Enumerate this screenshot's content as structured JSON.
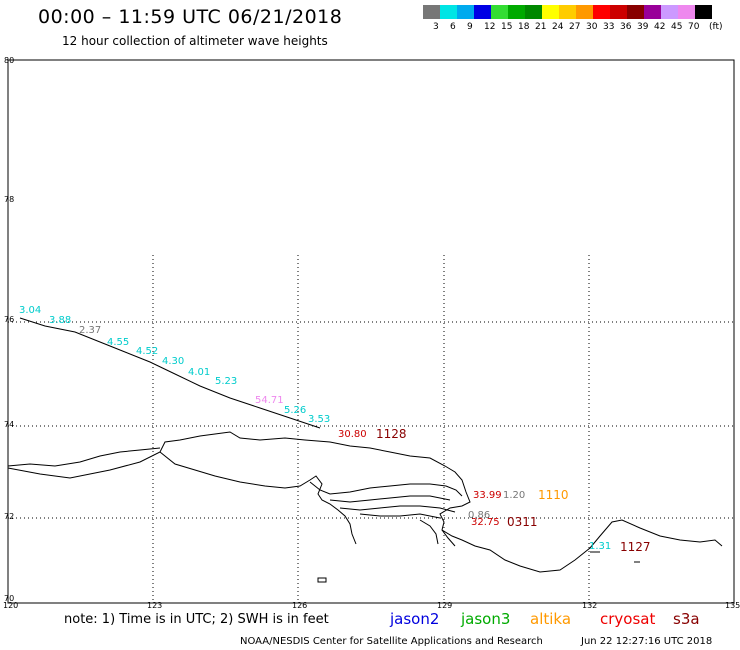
{
  "header": {
    "title": "00:00 – 11:59 UTC 06/21/2018",
    "subtitle": "12 hour collection of altimeter wave heights"
  },
  "legend": {
    "colors": [
      "#777777",
      "#00e5e5",
      "#00aaee",
      "#0000e5",
      "#33dd33",
      "#00aa00",
      "#008800",
      "#ffff00",
      "#ffcc00",
      "#ff9900",
      "#ff0000",
      "#cc0000",
      "#880000",
      "#990099",
      "#cc99ff",
      "#ee88ee",
      "#000000"
    ],
    "labels": [
      "3",
      "6",
      "9",
      "12",
      "15",
      "18",
      "21",
      "24",
      "27",
      "30",
      "33",
      "36",
      "39",
      "42",
      "45",
      "70",
      "(ft)"
    ]
  },
  "lat_labels": [
    "80",
    "78",
    "76",
    "74",
    "72",
    "70"
  ],
  "lon_labels": [
    "120",
    "123",
    "126",
    "129",
    "132",
    "135"
  ],
  "observations": [
    {
      "value": "3.04",
      "color": "#00cccc"
    },
    {
      "value": "3.88",
      "color": "#00cccc"
    },
    {
      "value": "2.37",
      "color": "#777777"
    },
    {
      "value": "4.55",
      "color": "#00cccc"
    },
    {
      "value": "4.52",
      "color": "#00cccc"
    },
    {
      "value": "4.30",
      "color": "#00cccc"
    },
    {
      "value": "4.01",
      "color": "#00cccc"
    },
    {
      "value": "5.23",
      "color": "#00cccc"
    },
    {
      "value": "54.71",
      "color": "#ee88ee"
    },
    {
      "value": "5.26",
      "color": "#00cccc"
    },
    {
      "value": "3.53",
      "color": "#00cccc"
    },
    {
      "value": "30.80",
      "color": "#cc0000"
    },
    {
      "value": "33.99",
      "color": "#cc0000"
    },
    {
      "value": "1.20",
      "color": "#777777"
    },
    {
      "value": "0.86",
      "color": "#777777"
    },
    {
      "value": "32.75",
      "color": "#cc0000"
    },
    {
      "value": "1.31",
      "color": "#00cccc"
    }
  ],
  "pass_times": [
    {
      "time": "1128",
      "color": "#880000"
    },
    {
      "time": "1110",
      "color": "#ff9900"
    },
    {
      "time": "0311",
      "color": "#880000"
    },
    {
      "time": "1127",
      "color": "#880000"
    }
  ],
  "footer": {
    "note": "note:  1) Time is in UTC;  2) SWH is in feet",
    "satellites": [
      {
        "name": "jason2",
        "color": "#0000dd"
      },
      {
        "name": "jason3",
        "color": "#00aa00"
      },
      {
        "name": "altika",
        "color": "#ff9900"
      },
      {
        "name": "cryosat",
        "color": "#ee0000"
      },
      {
        "name": "s3a",
        "color": "#880000"
      }
    ],
    "credit": "NOAA/NESDIS Center for Satellite Applications and Research",
    "date": "Jun 22 12:27:16 UTC 2018"
  }
}
